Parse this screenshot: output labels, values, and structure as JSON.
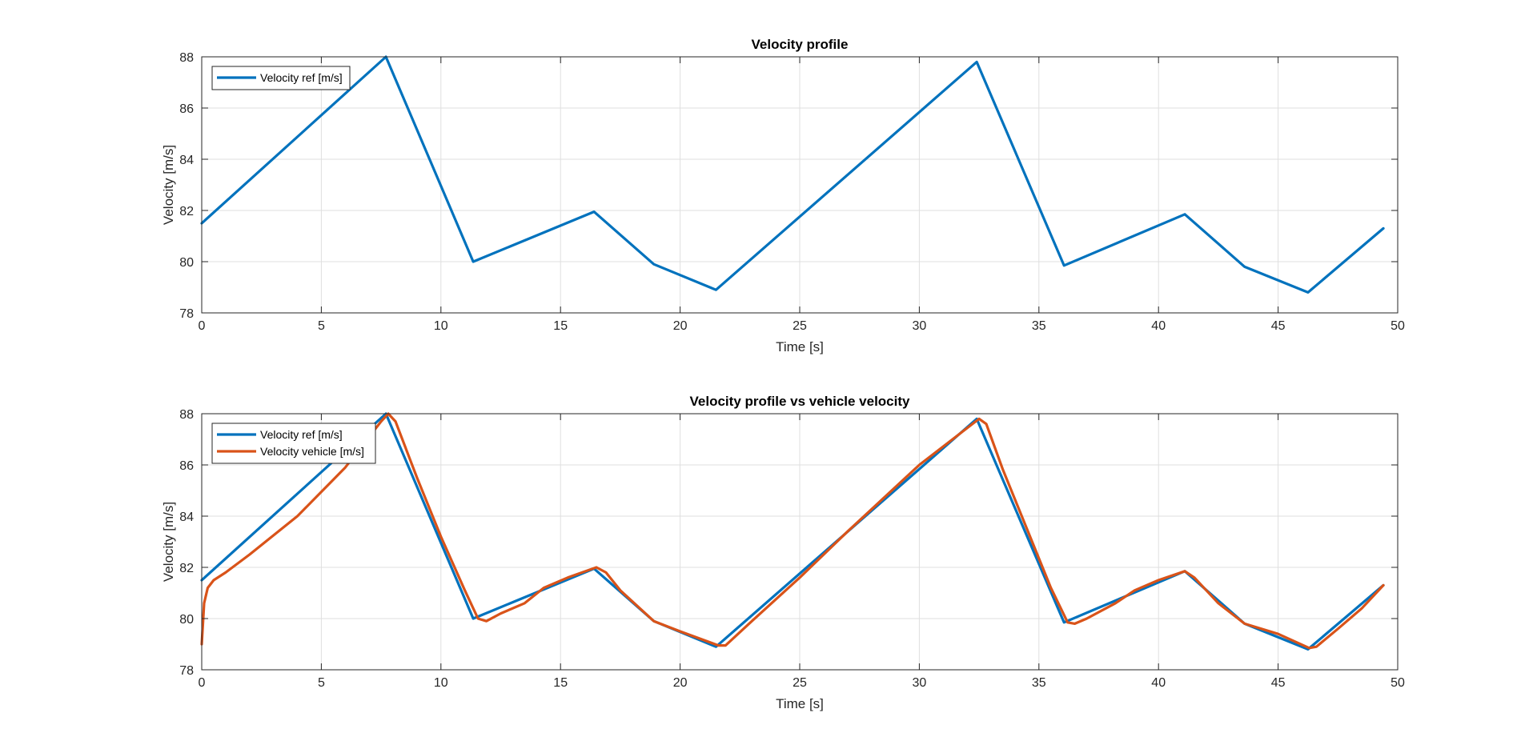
{
  "chart_data": [
    {
      "type": "line",
      "title": "Velocity profile",
      "xlabel": "Time [s]",
      "ylabel": "Velocity [m/s]",
      "xlim": [
        0,
        50
      ],
      "ylim": [
        78,
        88
      ],
      "xticks": [
        "0",
        "5",
        "10",
        "15",
        "20",
        "25",
        "30",
        "35",
        "40",
        "45",
        "50"
      ],
      "yticks": [
        "78",
        "80",
        "82",
        "84",
        "86",
        "88"
      ],
      "grid": true,
      "legend_position": "top-left",
      "series": [
        {
          "name": "Velocity ref [m/s]",
          "color": "#0072BD",
          "x": [
            0,
            7.7,
            11.35,
            16.4,
            18.9,
            21.5,
            32.4,
            36.05,
            41.1,
            43.6,
            46.25,
            49.4
          ],
          "y": [
            81.5,
            88.0,
            80.0,
            81.95,
            79.9,
            78.9,
            87.8,
            79.85,
            81.85,
            79.8,
            78.8,
            81.3
          ]
        }
      ]
    },
    {
      "type": "line",
      "title": "Velocity profile vs vehicle velocity",
      "xlabel": "Time [s]",
      "ylabel": "Velocity [m/s]",
      "xlim": [
        0,
        50
      ],
      "ylim": [
        78,
        88
      ],
      "xticks": [
        "0",
        "5",
        "10",
        "15",
        "20",
        "25",
        "30",
        "35",
        "40",
        "45",
        "50"
      ],
      "yticks": [
        "78",
        "80",
        "82",
        "84",
        "86",
        "88"
      ],
      "grid": true,
      "legend_position": "top-left",
      "series": [
        {
          "name": "Velocity ref [m/s]",
          "color": "#0072BD",
          "x": [
            0,
            7.7,
            11.35,
            16.4,
            18.9,
            21.5,
            32.4,
            36.05,
            41.1,
            43.6,
            46.25,
            49.4
          ],
          "y": [
            81.5,
            88.0,
            80.0,
            81.95,
            79.9,
            78.9,
            87.8,
            79.85,
            81.85,
            79.8,
            78.8,
            81.3
          ]
        },
        {
          "name": "Velocity vehicle [m/s]",
          "color": "#D95319",
          "x": [
            0,
            0.1,
            0.25,
            0.5,
            1.0,
            2.0,
            4.0,
            6.0,
            7.5,
            7.8,
            8.1,
            9.0,
            10.0,
            11.0,
            11.55,
            11.9,
            12.5,
            13.5,
            14.3,
            15.3,
            16.5,
            16.9,
            17.5,
            18.9,
            20.0,
            21.6,
            21.9,
            23.0,
            25.0,
            27.0,
            30.0,
            32.5,
            32.8,
            33.5,
            34.5,
            35.5,
            36.2,
            36.5,
            37.0,
            38.2,
            39.0,
            40.0,
            41.1,
            41.5,
            42.5,
            43.6,
            45.0,
            46.3,
            46.6,
            47.5,
            48.5,
            49.4
          ],
          "y": [
            79.0,
            80.6,
            81.2,
            81.5,
            81.8,
            82.5,
            84.0,
            85.9,
            87.7,
            88.0,
            87.7,
            85.5,
            83.2,
            81.1,
            80.0,
            79.9,
            80.2,
            80.6,
            81.2,
            81.6,
            82.0,
            81.8,
            81.1,
            79.9,
            79.5,
            78.95,
            78.95,
            79.9,
            81.6,
            83.4,
            86.0,
            87.8,
            87.6,
            85.8,
            83.5,
            81.2,
            79.85,
            79.8,
            80.0,
            80.6,
            81.1,
            81.5,
            81.85,
            81.6,
            80.6,
            79.8,
            79.4,
            78.85,
            78.9,
            79.6,
            80.4,
            81.3
          ]
        }
      ]
    }
  ]
}
